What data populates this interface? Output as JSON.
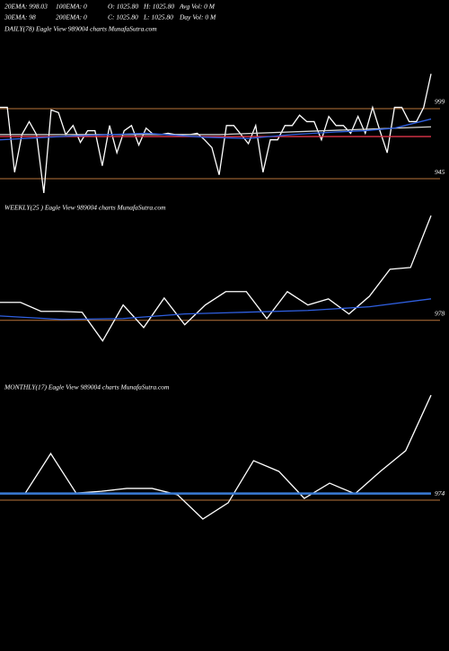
{
  "header": {
    "row1": [
      "20EMA: 998.03",
      "100EMA: 0",
      "O: 1025.80",
      "H: 1025.80",
      "Avg Vol: 0 M"
    ],
    "row2": [
      "30EMA: 98",
      "200EMA: 0",
      "C: 1025.80",
      "L: 1025.80",
      "Day Vol: 0 M"
    ]
  },
  "chart_data": [
    {
      "type": "line",
      "title": "DAILY(78) Eagle  View  989004  charts MunafaSutra.com",
      "xlim": [
        0,
        59
      ],
      "ylim": [
        930.5,
        1058.5
      ],
      "levels": [
        999,
        945
      ],
      "level_color": "#b8733a",
      "series": [
        {
          "color": "#ffffff",
          "x": [
            0,
            1,
            2,
            3,
            4,
            5,
            6,
            7,
            8,
            9,
            10,
            11,
            12,
            13,
            14,
            15,
            16,
            17,
            18,
            19,
            20,
            21,
            22,
            23,
            24,
            25,
            26,
            27,
            28,
            29,
            30,
            31,
            32,
            33,
            34,
            35,
            36,
            37,
            38,
            39,
            40,
            41,
            42,
            43,
            44,
            45,
            46,
            47,
            48,
            49,
            50,
            51,
            52,
            53,
            54,
            55,
            56,
            57,
            58,
            59
          ],
          "values": [
            1000,
            1000,
            950,
            979,
            989,
            979,
            934,
            998,
            996,
            979,
            986,
            973,
            982,
            982,
            955,
            986,
            965,
            982,
            986,
            971,
            984,
            979,
            979,
            980,
            979,
            979,
            979,
            980,
            975,
            969,
            948,
            986,
            986,
            979,
            972,
            986,
            950,
            975,
            975,
            986,
            986,
            994,
            989,
            989,
            975,
            993,
            986,
            986,
            980,
            993,
            980,
            1000,
            982,
            965,
            1000,
            1000,
            989,
            989,
            1000,
            1025.8
          ]
        },
        {
          "color": "#d9d9d9",
          "x": [
            0,
            30,
            59
          ],
          "values": [
            979,
            979,
            985
          ]
        },
        {
          "color": "#e0354a",
          "x": [
            0,
            59
          ],
          "values": [
            977.5,
            977.5
          ]
        },
        {
          "color": "#2f5fe0",
          "x": [
            0,
            10,
            20,
            28,
            34,
            40,
            46,
            50,
            54,
            59
          ],
          "values": [
            975,
            978,
            980,
            977,
            976,
            979,
            981,
            982,
            984,
            991
          ]
        }
      ]
    },
    {
      "type": "line",
      "title": "WEEKLY(25                         ) Eagle  View  989004  charts MunafaSutra.com",
      "xlim": [
        0,
        21
      ],
      "ylim": [
        966,
        1032
      ],
      "levels": [
        978
      ],
      "level_color": "#b8733a",
      "series": [
        {
          "color": "#ffffff",
          "x": [
            0,
            1,
            2,
            3,
            4,
            5,
            6,
            7,
            8,
            9,
            10,
            11,
            12,
            13,
            14,
            15,
            16,
            17,
            18,
            19,
            20,
            21
          ],
          "values": [
            986.2,
            986.2,
            982.1,
            982.1,
            981.7,
            968.6,
            985,
            974.7,
            988.2,
            976,
            985,
            991.1,
            991.1,
            978.8,
            991.1,
            985,
            987.8,
            980.9,
            989,
            1001.3,
            1002.1,
            1025.8
          ]
        },
        {
          "color": "#2f5fe0",
          "x": [
            0,
            3,
            6,
            9,
            12,
            15,
            18,
            21
          ],
          "values": [
            980,
            978.4,
            978.8,
            980.9,
            981.7,
            982.5,
            984.2,
            987.8
          ]
        }
      ]
    },
    {
      "type": "line",
      "title": "MONTHLY(17) Eagle  View  989004  charts MunafaSutra.com",
      "xlim": [
        0,
        17
      ],
      "ylim": [
        959,
        1030
      ],
      "levels": [
        974
      ],
      "level_color": "#b8733a",
      "series": [
        {
          "color": "#ffffff",
          "x": [
            0,
            1,
            2,
            3,
            4,
            5,
            6,
            7,
            8,
            9,
            10,
            11,
            12,
            13,
            14,
            15,
            16,
            17
          ],
          "values": [
            977.5,
            977.5,
            997,
            977.5,
            978.4,
            979.8,
            979.8,
            976.7,
            964.7,
            972.7,
            993.5,
            988.2,
            974.9,
            982.4,
            977.1,
            988.2,
            998.4,
            1025.8
          ]
        },
        {
          "color": "#3a7bd5",
          "x": [
            0,
            17
          ],
          "values": [
            977.3,
            977.3
          ]
        }
      ]
    }
  ]
}
